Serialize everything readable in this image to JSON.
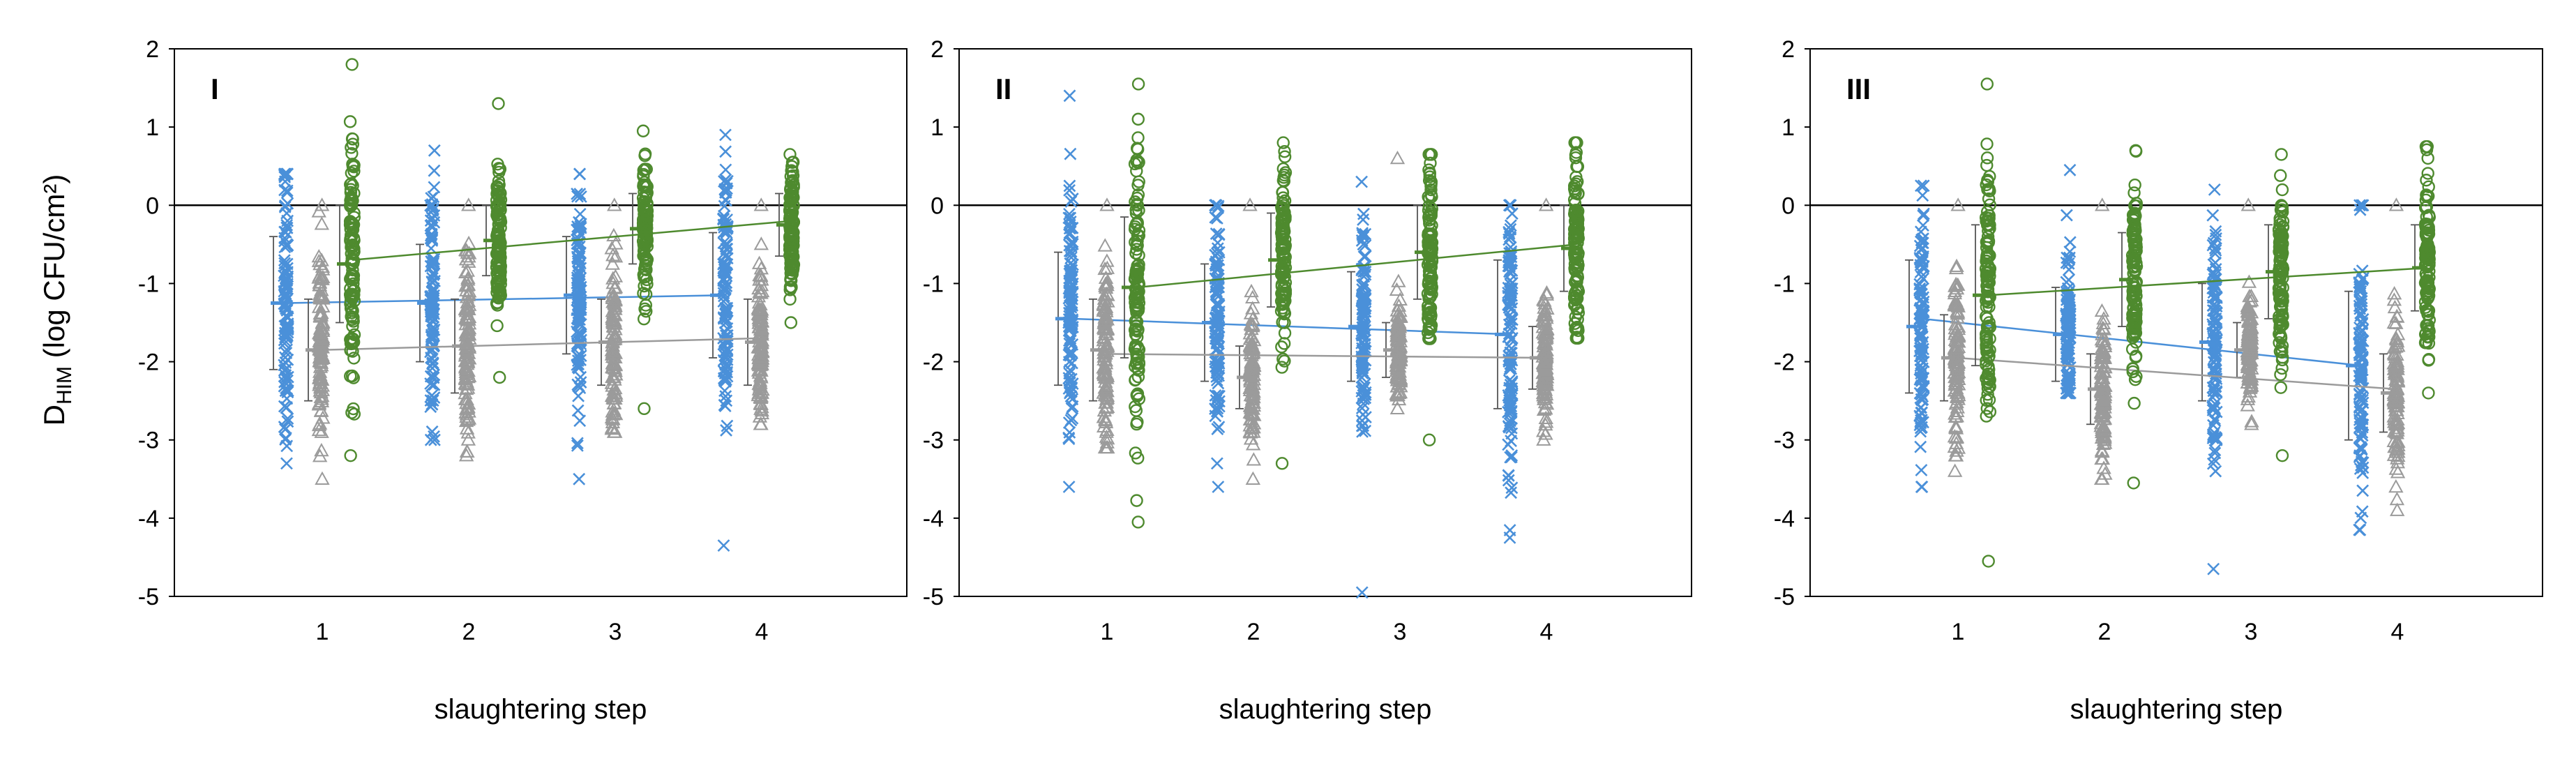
{
  "figure": {
    "ylabel_main": "D",
    "ylabel_sub": "HIM",
    "ylabel_rest": " (log CFU/cm²)"
  },
  "colors": {
    "blue": "#4a90d9",
    "grey": "#9b9b9b",
    "green": "#4e8a2e"
  },
  "chart_data": [
    {
      "type": "scatter",
      "panel": "I",
      "xlabel": "slaughtering step",
      "ylabel": "DHIM (log CFU/cm²)",
      "xlim": [
        0,
        5
      ],
      "ylim": [
        -5,
        2
      ],
      "x_ticks": [
        1,
        2,
        3,
        4
      ],
      "y_ticks": [
        2,
        1,
        0,
        -1,
        -2,
        -3,
        -4,
        -5
      ],
      "grid": false,
      "series": [
        {
          "name": "blue crosses",
          "marker": "x",
          "color": "#4a90d9",
          "means": [
            -1.25,
            -1.25,
            -1.15,
            -1.15
          ],
          "sd": [
            0.85,
            0.75,
            0.75,
            0.8
          ],
          "ranges": [
            [
              -3.3,
              0.4
            ],
            [
              -3.0,
              0.7
            ],
            [
              -3.5,
              0.4
            ],
            [
              -4.35,
              0.9
            ]
          ],
          "trend": [
            -1.25,
            -1.15
          ]
        },
        {
          "name": "grey triangles",
          "marker": "triangle",
          "color": "#9b9b9b",
          "means": [
            -1.85,
            -1.8,
            -1.75,
            -1.75
          ],
          "sd": [
            0.65,
            0.6,
            0.55,
            0.55
          ],
          "ranges": [
            [
              -3.5,
              0.0
            ],
            [
              -3.2,
              0.0
            ],
            [
              -2.9,
              0.0
            ],
            [
              -2.8,
              0.0
            ]
          ],
          "trend": [
            -1.85,
            -1.7
          ]
        },
        {
          "name": "green circles",
          "marker": "circle",
          "color": "#4e8a2e",
          "means": [
            -0.75,
            -0.45,
            -0.3,
            -0.25
          ],
          "sd": [
            0.75,
            0.45,
            0.45,
            0.4
          ],
          "ranges": [
            [
              -3.2,
              1.8
            ],
            [
              -2.2,
              1.3
            ],
            [
              -2.6,
              0.95
            ],
            [
              -1.5,
              0.65
            ]
          ],
          "trend": [
            -0.7,
            -0.2
          ]
        }
      ]
    },
    {
      "type": "scatter",
      "panel": "II",
      "xlabel": "slaughtering step",
      "ylabel": "DHIM (log CFU/cm²)",
      "xlim": [
        0,
        5
      ],
      "ylim": [
        -5,
        2
      ],
      "x_ticks": [
        1,
        2,
        3,
        4
      ],
      "y_ticks": [
        2,
        1,
        0,
        -1,
        -2,
        -3,
        -4,
        -5
      ],
      "grid": false,
      "series": [
        {
          "name": "blue crosses",
          "marker": "x",
          "color": "#4a90d9",
          "means": [
            -1.45,
            -1.5,
            -1.55,
            -1.65
          ],
          "sd": [
            0.85,
            0.75,
            0.7,
            0.95
          ],
          "ranges": [
            [
              -3.6,
              1.4
            ],
            [
              -3.6,
              0.0
            ],
            [
              -4.95,
              0.3
            ],
            [
              -4.25,
              0.0
            ]
          ],
          "trend": [
            -1.45,
            -1.65
          ]
        },
        {
          "name": "grey triangles",
          "marker": "triangle",
          "color": "#9b9b9b",
          "means": [
            -1.85,
            -2.2,
            -1.85,
            -1.95
          ],
          "sd": [
            0.65,
            0.4,
            0.35,
            0.4
          ],
          "ranges": [
            [
              -3.1,
              0.0
            ],
            [
              -3.5,
              0.0
            ],
            [
              -2.6,
              0.6
            ],
            [
              -3.0,
              0.0
            ]
          ],
          "trend": [
            -1.9,
            -1.95
          ]
        },
        {
          "name": "green circles",
          "marker": "circle",
          "color": "#4e8a2e",
          "means": [
            -1.05,
            -0.7,
            -0.6,
            -0.55
          ],
          "sd": [
            0.9,
            0.6,
            0.6,
            0.55
          ],
          "ranges": [
            [
              -4.05,
              1.55
            ],
            [
              -3.3,
              0.8
            ],
            [
              -3.0,
              0.65
            ],
            [
              -1.7,
              0.8
            ]
          ],
          "trend": [
            -1.05,
            -0.5
          ]
        }
      ]
    },
    {
      "type": "scatter",
      "panel": "III",
      "xlabel": "slaughtering step",
      "ylabel": "DHIM (log CFU/cm²)",
      "xlim": [
        0,
        5
      ],
      "ylim": [
        -5,
        2
      ],
      "x_ticks": [
        1,
        2,
        3,
        4
      ],
      "y_ticks": [
        2,
        1,
        0,
        -1,
        -2,
        -3,
        -4,
        -5
      ],
      "grid": false,
      "series": [
        {
          "name": "blue crosses",
          "marker": "x",
          "color": "#4a90d9",
          "means": [
            -1.55,
            -1.65,
            -1.75,
            -2.05
          ],
          "sd": [
            0.85,
            0.6,
            0.75,
            0.95
          ],
          "ranges": [
            [
              -3.6,
              0.25
            ],
            [
              -2.4,
              0.45
            ],
            [
              -4.65,
              0.2
            ],
            [
              -4.15,
              0.0
            ]
          ],
          "trend": [
            -1.45,
            -2.05
          ]
        },
        {
          "name": "grey triangles",
          "marker": "triangle",
          "color": "#9b9b9b",
          "means": [
            -1.95,
            -2.35,
            -1.85,
            -2.4
          ],
          "sd": [
            0.55,
            0.45,
            0.35,
            0.5
          ],
          "ranges": [
            [
              -3.4,
              0.0
            ],
            [
              -3.5,
              0.0
            ],
            [
              -2.8,
              0.0
            ],
            [
              -3.9,
              0.0
            ]
          ],
          "trend": [
            -1.95,
            -2.35
          ]
        },
        {
          "name": "green circles",
          "marker": "circle",
          "color": "#4e8a2e",
          "means": [
            -1.15,
            -0.95,
            -0.85,
            -0.8
          ],
          "sd": [
            0.9,
            0.6,
            0.6,
            0.55
          ],
          "ranges": [
            [
              -4.55,
              1.55
            ],
            [
              -3.55,
              0.7
            ],
            [
              -3.2,
              0.65
            ],
            [
              -2.4,
              0.75
            ]
          ],
          "trend": [
            -1.15,
            -0.8
          ]
        }
      ]
    }
  ]
}
